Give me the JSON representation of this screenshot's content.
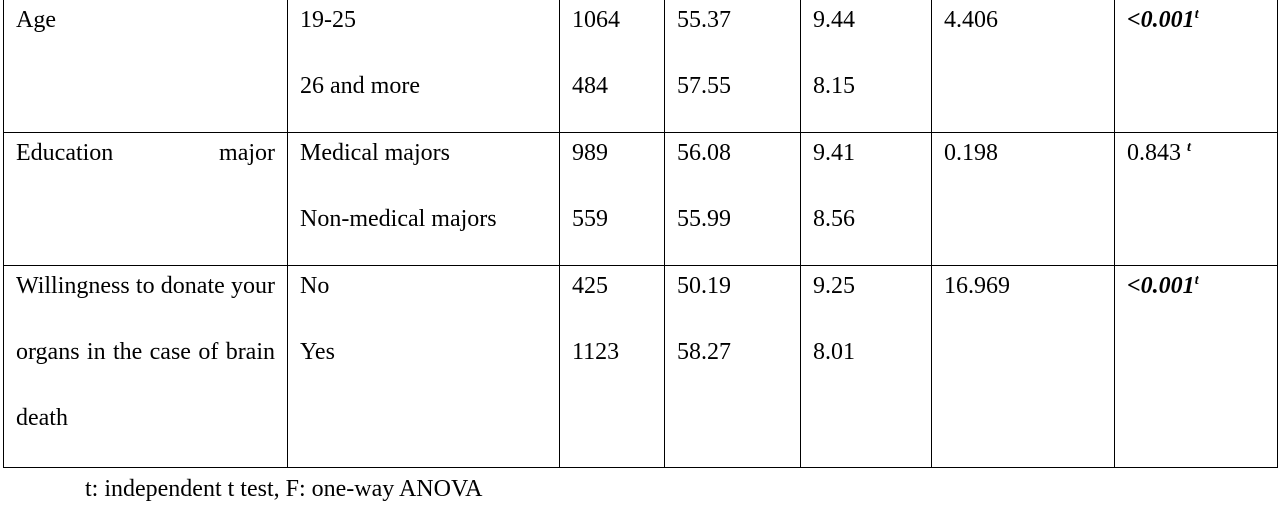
{
  "table": {
    "rows": [
      {
        "variable": "Age",
        "groups": [
          "19-25",
          "26 and more"
        ],
        "n": [
          1064,
          484
        ],
        "mean": [
          55.37,
          57.55
        ],
        "sd": [
          9.44,
          8.15
        ],
        "statistic": 4.406,
        "p": "<0.001",
        "p_test": "t"
      },
      {
        "variable": "Education major",
        "groups": [
          "Medical majors",
          "Non-medical majors"
        ],
        "n": [
          989,
          559
        ],
        "mean": [
          56.08,
          55.99
        ],
        "sd": [
          9.41,
          8.56
        ],
        "statistic": 0.198,
        "p": "0.843",
        "p_test": "t"
      },
      {
        "variable": "Willingness to donate your organs in the case of brain death",
        "groups": [
          "No",
          "Yes"
        ],
        "n": [
          425,
          1123
        ],
        "mean": [
          50.19,
          58.27
        ],
        "sd": [
          9.25,
          8.01
        ],
        "statistic": 16.969,
        "p": "<0.001",
        "p_test": "t"
      }
    ]
  },
  "footnote": "t: independent t test, F: one-way ANOVA"
}
